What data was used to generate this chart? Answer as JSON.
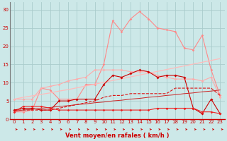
{
  "xlabel": "Vent moyen/en rafales ( km/h )",
  "background_color": "#cce8e8",
  "grid_color": "#aacccc",
  "x_values": [
    0,
    1,
    2,
    3,
    4,
    5,
    6,
    7,
    8,
    9,
    10,
    11,
    12,
    13,
    14,
    15,
    16,
    17,
    18,
    19,
    20,
    21,
    22,
    23
  ],
  "ylim": [
    0,
    32
  ],
  "yticks": [
    0,
    5,
    10,
    15,
    20,
    25,
    30
  ],
  "series": [
    {
      "name": "light_pink_peaked",
      "color": "#ff8888",
      "linewidth": 0.8,
      "marker": "D",
      "markersize": 1.8,
      "y": [
        2.0,
        2.0,
        2.5,
        8.5,
        8.0,
        5.5,
        5.5,
        5.5,
        9.5,
        9.5,
        15.0,
        27.0,
        24.0,
        27.5,
        29.5,
        27.5,
        25.0,
        24.5,
        24.0,
        19.5,
        19.0,
        23.0,
        13.5,
        6.5
      ]
    },
    {
      "name": "light_pink_sloped",
      "color": "#ffaaaa",
      "linewidth": 0.8,
      "marker": "D",
      "markersize": 1.8,
      "y": [
        5.5,
        5.5,
        5.5,
        8.5,
        9.0,
        9.5,
        10.5,
        11.0,
        11.5,
        13.5,
        13.5,
        13.5,
        13.5,
        13.0,
        13.0,
        13.0,
        12.0,
        11.5,
        11.0,
        11.0,
        11.0,
        10.5,
        11.5,
        6.0
      ]
    },
    {
      "name": "pink_linear",
      "color": "#ffbbbb",
      "linewidth": 0.9,
      "marker": null,
      "y": [
        5.5,
        6.0,
        6.4,
        6.8,
        7.2,
        7.7,
        8.1,
        8.6,
        9.1,
        9.6,
        10.1,
        10.6,
        11.1,
        11.6,
        12.1,
        12.6,
        13.1,
        13.6,
        14.1,
        14.6,
        15.1,
        15.6,
        16.1,
        16.6
      ]
    },
    {
      "name": "medium_red_markers",
      "color": "#cc0000",
      "linewidth": 0.8,
      "marker": "D",
      "markersize": 2.0,
      "y": [
        2.5,
        3.0,
        3.0,
        2.5,
        2.5,
        5.0,
        5.0,
        5.5,
        5.5,
        5.5,
        9.5,
        12.0,
        11.5,
        12.5,
        13.5,
        13.0,
        11.5,
        12.0,
        12.0,
        11.5,
        3.0,
        1.5,
        5.5,
        1.5
      ]
    },
    {
      "name": "red_dashed",
      "color": "#dd1111",
      "linewidth": 0.8,
      "linestyle": "--",
      "marker": null,
      "y": [
        2.5,
        2.5,
        2.5,
        2.5,
        2.5,
        3.0,
        3.5,
        4.0,
        4.5,
        5.0,
        6.0,
        6.5,
        6.5,
        7.0,
        7.0,
        7.0,
        7.0,
        7.0,
        8.5,
        8.5,
        8.5,
        8.5,
        8.5,
        6.5
      ]
    },
    {
      "name": "red_linear_thin",
      "color": "#cc2222",
      "linewidth": 0.7,
      "marker": null,
      "y": [
        2.2,
        2.5,
        2.7,
        3.0,
        3.2,
        3.5,
        3.7,
        4.0,
        4.2,
        4.5,
        4.7,
        5.0,
        5.2,
        5.5,
        5.7,
        6.0,
        6.2,
        6.5,
        6.7,
        7.0,
        7.2,
        7.5,
        7.7,
        8.0
      ]
    },
    {
      "name": "bottom_flat_red",
      "color": "#ee2222",
      "linewidth": 0.8,
      "marker": "D",
      "markersize": 1.8,
      "y": [
        2.0,
        3.5,
        3.5,
        3.5,
        3.0,
        2.5,
        2.5,
        2.5,
        2.5,
        2.5,
        2.5,
        2.5,
        2.5,
        2.5,
        2.5,
        2.5,
        3.0,
        3.0,
        3.0,
        3.0,
        3.0,
        2.0,
        2.0,
        1.5
      ]
    }
  ],
  "arrow_color": "#cc0000",
  "tick_color": "#cc0000",
  "tick_fontsize": 5.0,
  "xlabel_fontsize": 6.0,
  "xlabel_color": "#cc0000"
}
